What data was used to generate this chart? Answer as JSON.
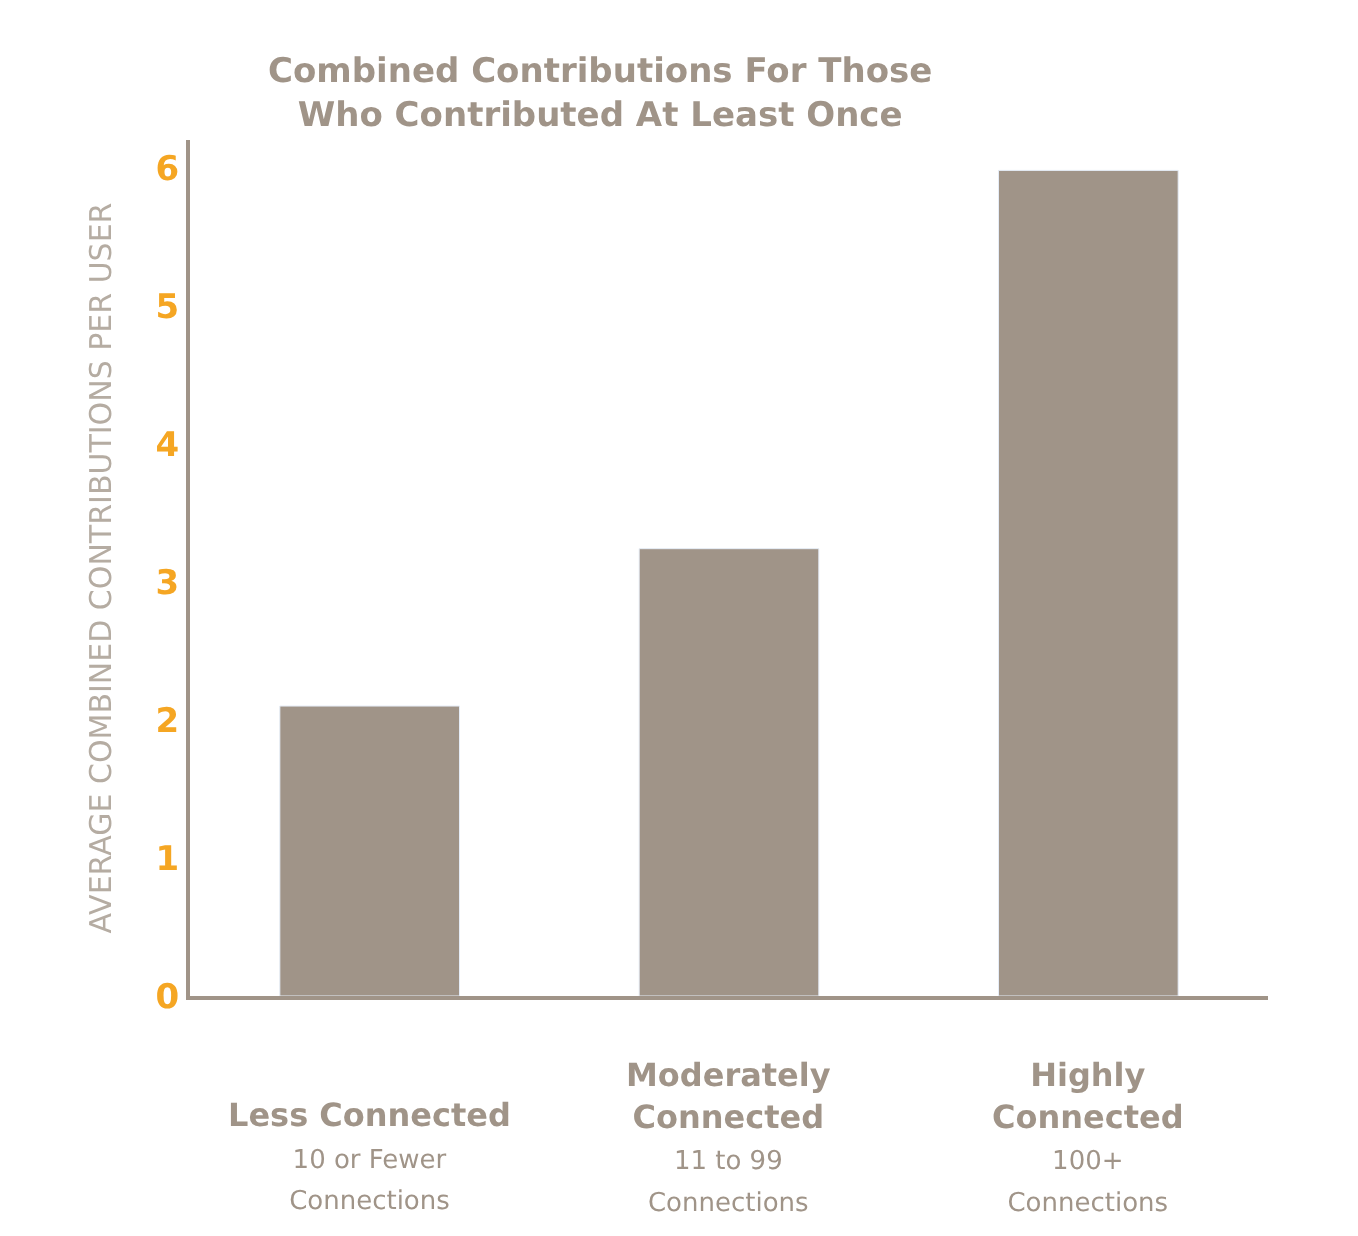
{
  "chart_data": {
    "type": "bar",
    "title": "Combined Contributions For Those\nWho Contributed At Least Once",
    "ylabel": "AVERAGE COMBINED CONTRIBUTIONS PER USER",
    "categories": [
      "Less Connected\n10 or Fewer\nConnections",
      "Moderately\nConnected\n11 to 99\nConnections",
      "Highly\nConnected\n100+\nConnections"
    ],
    "values": [
      2.1,
      3.24,
      5.98
    ],
    "color": "#a09488",
    "ylim": [
      0,
      6.2
    ],
    "yticks": [
      0,
      1,
      2,
      3,
      4,
      5,
      6
    ],
    "legend": false
  }
}
